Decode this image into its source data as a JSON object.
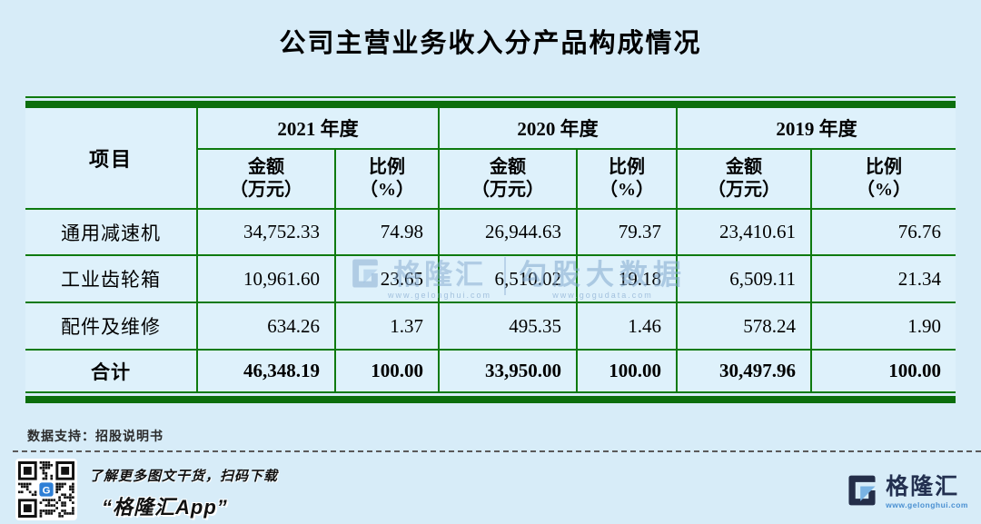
{
  "title": "公司主营业务收入分产品构成情况",
  "table": {
    "item_header": "项目",
    "years": [
      {
        "label": "2021 年度"
      },
      {
        "label": "2020 年度"
      },
      {
        "label": "2019 年度"
      }
    ],
    "sub": {
      "amount_l1": "金额",
      "amount_l2": "（万元）",
      "ratio_l1": "比例",
      "ratio_l2": "（%）"
    },
    "rows": [
      {
        "label": "通用减速机",
        "values": [
          "34,752.33",
          "74.98",
          "26,944.63",
          "79.37",
          "23,410.61",
          "76.76"
        ],
        "bold": false
      },
      {
        "label": "工业齿轮箱",
        "values": [
          "10,961.60",
          "23.65",
          "6,510.02",
          "19.18",
          "6,509.11",
          "21.34"
        ],
        "bold": false
      },
      {
        "label": "配件及维修",
        "values": [
          "634.26",
          "1.37",
          "495.35",
          "1.46",
          "578.24",
          "1.90"
        ],
        "bold": false
      },
      {
        "label": "合计",
        "values": [
          "46,348.19",
          "100.00",
          "33,950.00",
          "100.00",
          "30,497.96",
          "100.00"
        ],
        "bold": true
      }
    ]
  },
  "watermark": {
    "brand": "格隆汇",
    "brand_url": "www.gelonghui.com",
    "data_brand": "勾股大数据",
    "data_brand_url": "www.gogudata.com"
  },
  "source_note": "数据支持：招股说明书",
  "footer": {
    "qr_caption_line1": "了解更多图文干货，扫码下载",
    "qr_caption_line2": "“格隆汇App”",
    "brand_name": "格隆汇",
    "brand_url": "www.gelonghui.com"
  },
  "colors": {
    "background": "#d7ecf8",
    "table_background": "#def1fb",
    "green": "#0e7a0f",
    "navy": "#233050",
    "link_blue": "#4a90d2",
    "qr_logo_blue": "#2e7fd6"
  },
  "chart_data": {
    "type": "table",
    "title": "公司主营业务收入分产品构成情况",
    "columns": [
      "项目",
      "2021年度 金额(万元)",
      "2021年度 比例(%)",
      "2020年度 金额(万元)",
      "2020年度 比例(%)",
      "2019年度 金额(万元)",
      "2019年度 比例(%)"
    ],
    "rows": [
      [
        "通用减速机",
        34752.33,
        74.98,
        26944.63,
        79.37,
        23410.61,
        76.76
      ],
      [
        "工业齿轮箱",
        10961.6,
        23.65,
        6510.02,
        19.18,
        6509.11,
        21.34
      ],
      [
        "配件及维修",
        634.26,
        1.37,
        495.35,
        1.46,
        578.24,
        1.9
      ],
      [
        "合计",
        46348.19,
        100.0,
        33950.0,
        100.0,
        30497.96,
        100.0
      ]
    ],
    "source": "招股说明书"
  }
}
